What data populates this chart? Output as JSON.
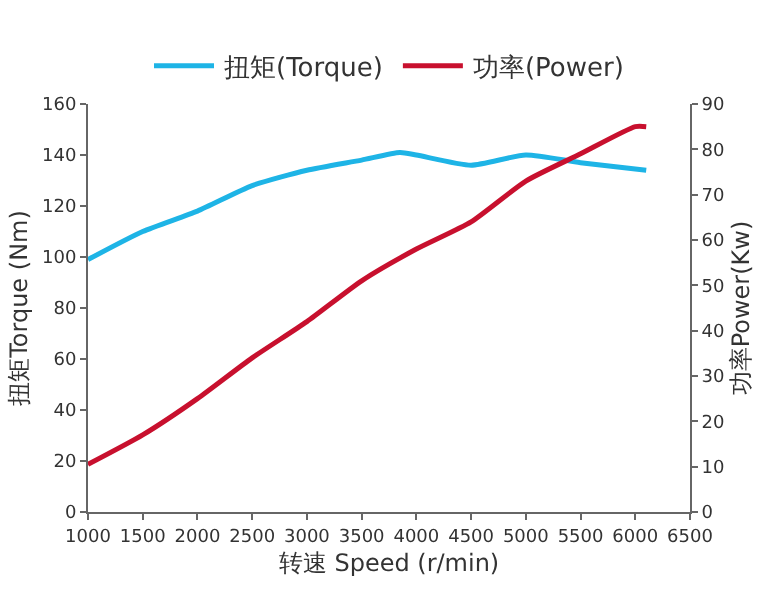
{
  "chart_data": {
    "type": "line",
    "xlabel": "转速 Speed (r/min)",
    "ylabel": "扭矩Torque (Nm)",
    "y2label": "功率Power(Kw)",
    "xlim": [
      1000,
      6500
    ],
    "xticks": [
      1000,
      1500,
      2000,
      2500,
      3000,
      3500,
      4000,
      4500,
      5000,
      5500,
      6000,
      6500
    ],
    "ylim": [
      0,
      160
    ],
    "yticks": [
      0,
      20,
      40,
      60,
      80,
      100,
      120,
      140,
      160
    ],
    "y2lim": [
      0,
      90
    ],
    "y2ticks": [
      0,
      10,
      20,
      30,
      40,
      50,
      60,
      70,
      80,
      90
    ],
    "grid": false,
    "legend": "top",
    "marker": "none",
    "line_style": "solid",
    "series": [
      {
        "name": "扭矩(Torque)",
        "color": "#1eb4e6",
        "x": [
          1000,
          1500,
          2000,
          2500,
          3000,
          3500,
          3850,
          4000,
          4500,
          5000,
          5500,
          6100
        ],
        "values": [
          99,
          110,
          118,
          128,
          134,
          138,
          141,
          140,
          136,
          140,
          137,
          134
        ]
      },
      {
        "name": "功率(Power)",
        "color": "#c8102e",
        "axis": "y2",
        "x": [
          1000,
          1500,
          2000,
          2500,
          3000,
          3500,
          4000,
          4500,
          5000,
          5500,
          6000,
          6100
        ],
        "values": [
          10.5,
          17,
          25,
          34,
          42,
          51,
          58,
          64,
          73,
          79,
          85,
          85
        ]
      }
    ]
  }
}
